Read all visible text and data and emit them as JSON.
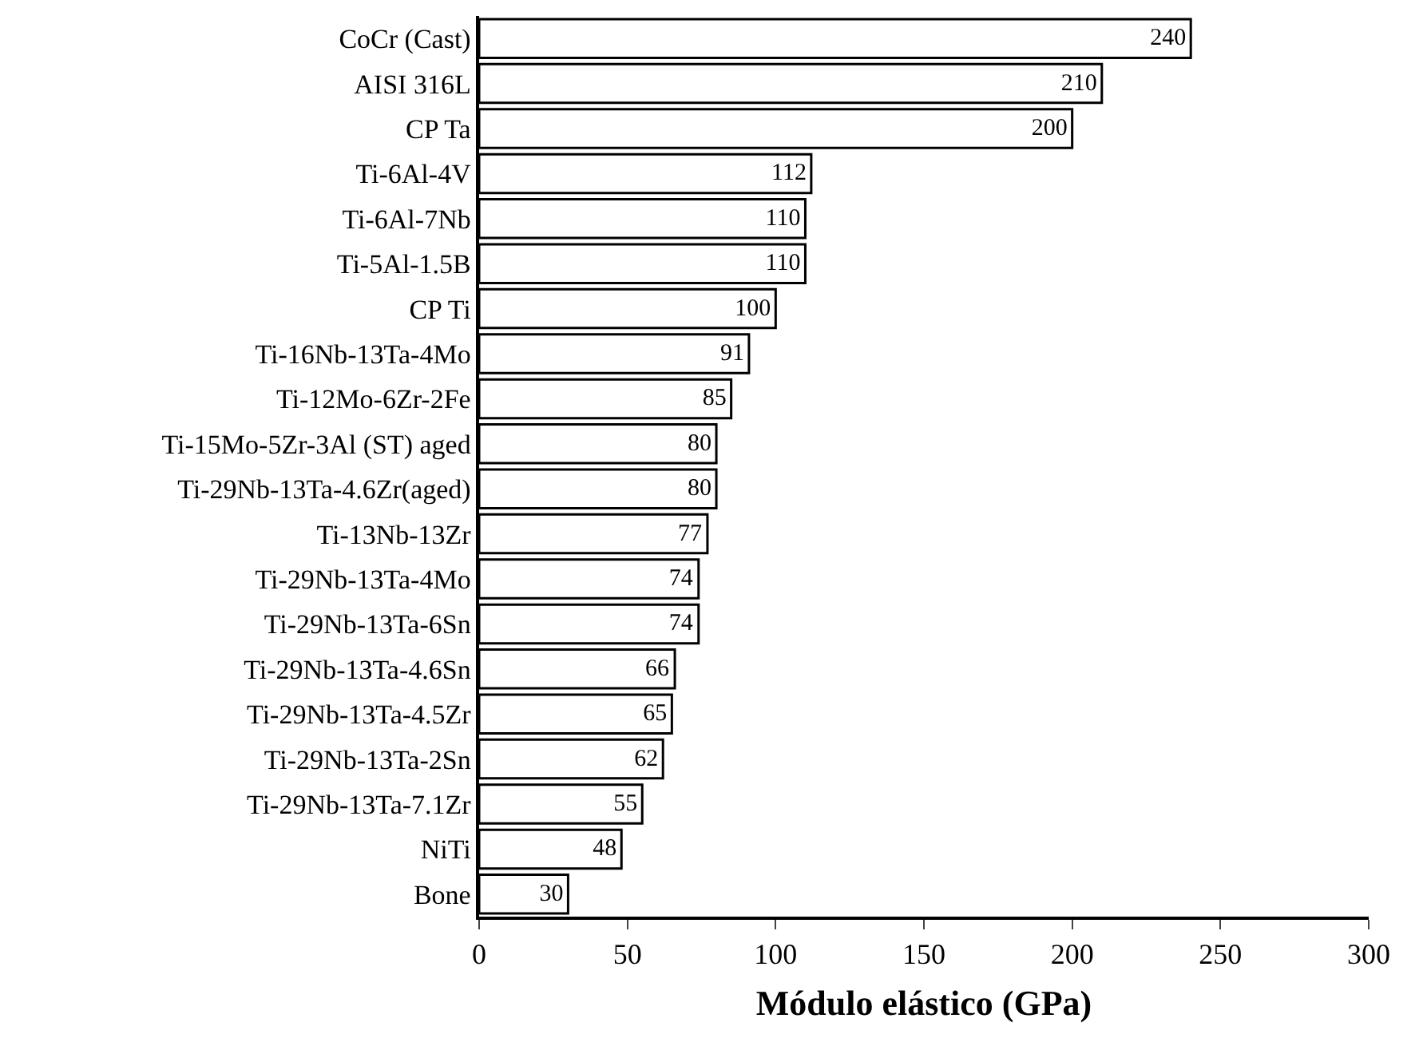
{
  "chart_data": {
    "type": "bar",
    "orientation": "horizontal",
    "xlabel": "Módulo elástico (GPa)",
    "categories": [
      "CoCr (Cast)",
      "AISI 316L",
      "CP Ta",
      "Ti-6Al-4V",
      "Ti-6Al-7Nb",
      "Ti-5Al-1.5B",
      "CP Ti",
      "Ti-16Nb-13Ta-4Mo",
      "Ti-12Mo-6Zr-2Fe",
      "Ti-15Mo-5Zr-3Al (ST) aged",
      "Ti-29Nb-13Ta-4.6Zr(aged)",
      "Ti-13Nb-13Zr",
      "Ti-29Nb-13Ta-4Mo",
      "Ti-29Nb-13Ta-6Sn",
      "Ti-29Nb-13Ta-4.6Sn",
      "Ti-29Nb-13Ta-4.5Zr",
      "Ti-29Nb-13Ta-2Sn",
      "Ti-29Nb-13Ta-7.1Zr",
      "NiTi",
      "Bone"
    ],
    "values": [
      240,
      210,
      200,
      112,
      110,
      110,
      100,
      91,
      85,
      80,
      80,
      77,
      74,
      74,
      66,
      65,
      62,
      55,
      48,
      30
    ],
    "color": "#ffffff",
    "data_labels": true,
    "grid": false,
    "legend": false,
    "xlim": [
      0,
      300
    ],
    "xticks": [
      0,
      50,
      100,
      150,
      200,
      250,
      300
    ]
  }
}
